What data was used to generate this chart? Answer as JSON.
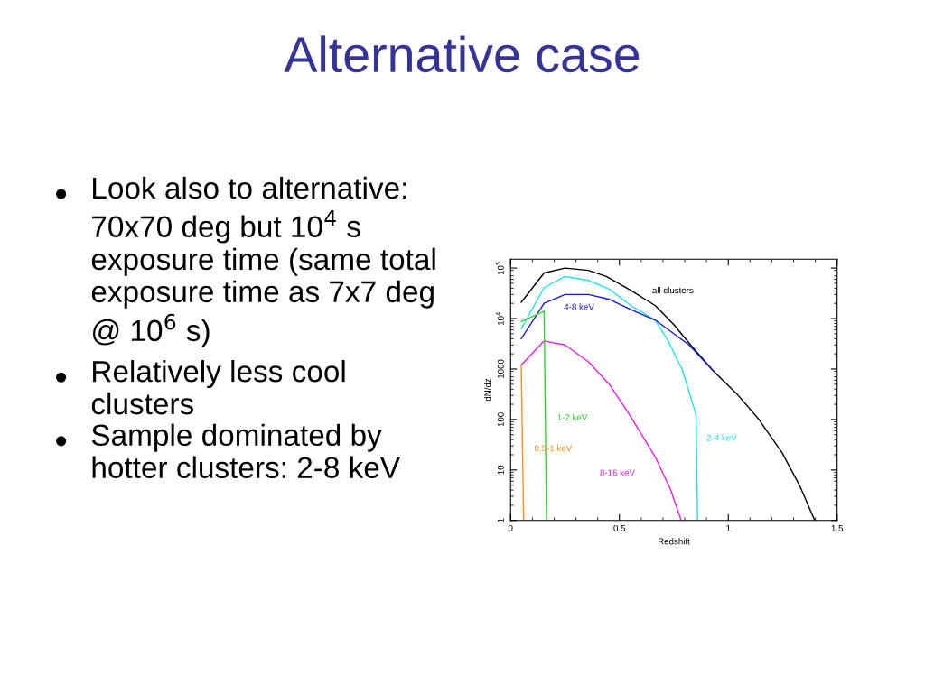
{
  "chart_data": {
    "type": "line",
    "title": "Alternative case",
    "xlabel": "Redshift",
    "ylabel": "dN/dz",
    "log": "y",
    "xlim": [
      0,
      1.5
    ],
    "xticks": [
      0,
      0.5,
      1,
      1.5
    ],
    "ylim": [
      1,
      150000
    ],
    "yticks": [
      1,
      10,
      100,
      1000,
      {
        "value": 10000,
        "label": "10$^{4}$"
      },
      {
        "value": 100000,
        "label": "10$^{5}$"
      }
    ],
    "grid": false,
    "legend": false,
    "marker": "none",
    "line_style": "solid",
    "series": [
      {
        "name": "all clusters",
        "color": "#000000",
        "x": [
          0.049,
          0.154,
          0.25,
          0.357,
          0.44,
          0.553,
          0.665,
          0.75,
          0.836,
          0.93,
          1.04,
          1.137,
          1.247,
          1.33,
          1.397
        ],
        "values": [
          21000,
          80000,
          100000,
          90000,
          68000,
          36000,
          18000,
          7600,
          2700,
          930,
          320,
          105,
          22,
          4.7,
          1
        ]
      },
      {
        "name": "2-4 keV",
        "color": "#22e0e6",
        "x": [
          0.049,
          0.154,
          0.25,
          0.357,
          0.455,
          0.553,
          0.665,
          0.726,
          0.763,
          0.788,
          0.852,
          0.859
        ],
        "values": [
          6300,
          41000,
          68000,
          57000,
          38000,
          18000,
          9300,
          3500,
          1600,
          1000,
          123,
          1
        ]
      },
      {
        "name": "4-8 keV",
        "color": "#1a1acc",
        "x": [
          0.049,
          0.154,
          0.25,
          0.357,
          0.455,
          0.553,
          0.665,
          0.82,
          0.93
        ],
        "values": [
          4000,
          20000,
          30000,
          30000,
          24000,
          15000,
          9300,
          3000,
          930
        ]
      },
      {
        "name": "8-16 keV",
        "color": "#e020e0",
        "x": [
          0.049,
          0.154,
          0.25,
          0.357,
          0.455,
          0.553,
          0.665,
          0.735,
          0.784
        ],
        "values": [
          1200,
          3600,
          3000,
          1400,
          490,
          112,
          18,
          4.1,
          1
        ]
      },
      {
        "name": "1-2 keV",
        "color": "#33cc33",
        "x": [
          0.049,
          0.154,
          0.165
        ],
        "values": [
          8700,
          14000,
          1
        ]
      },
      {
        "name": "0.5-1 keV",
        "color": "#ff8c1a",
        "x": [
          0.049,
          0.06
        ],
        "values": [
          1200,
          1
        ]
      }
    ],
    "annotations": [
      "Look also to alternative: 70x70 deg but 10$^{4}$ s exposure time (same total exposure time as 7x7 deg @ 10$^{6}$ s)",
      "Relatively less cool clusters",
      "Sample dominated by hotter clusters: 2-8 keV"
    ]
  }
}
